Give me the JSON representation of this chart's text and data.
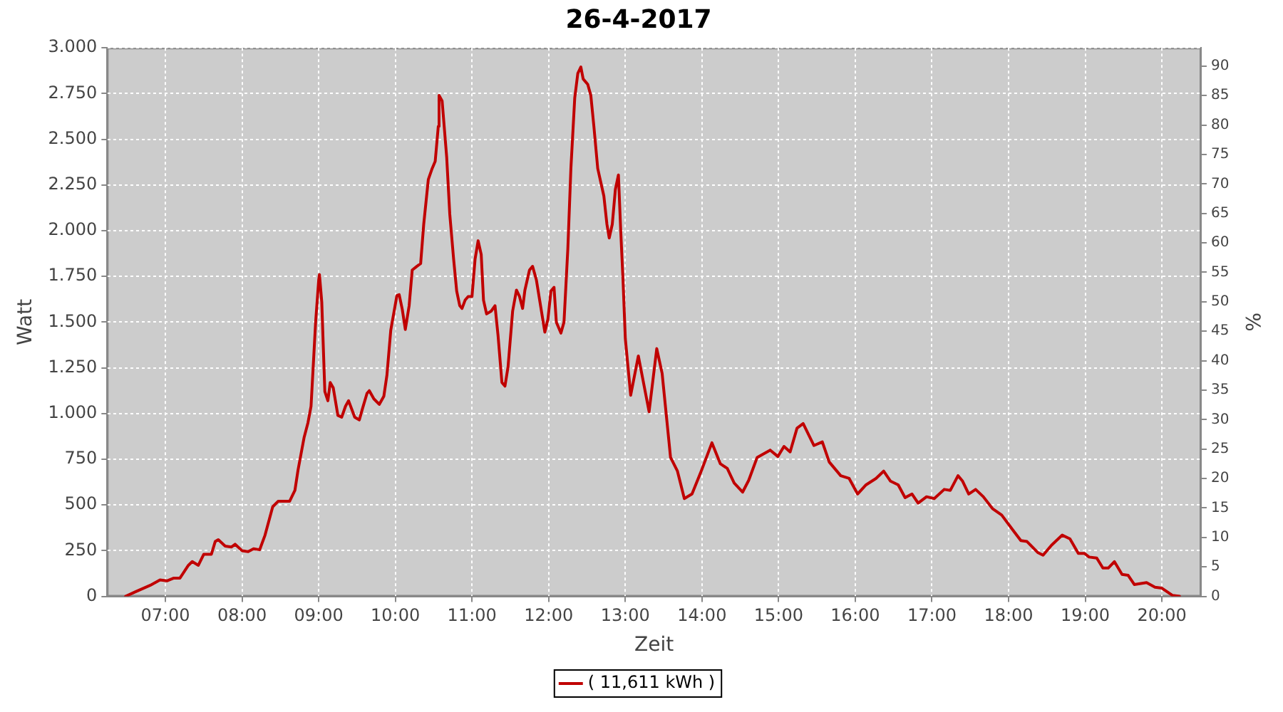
{
  "chart_data": {
    "type": "line",
    "title": "26-4-2017",
    "xlabel": "Zeit",
    "ylabel": "Watt",
    "y2label": "%",
    "xlim": [
      6.24,
      20.51
    ],
    "xticks": [
      {
        "value": 7,
        "label": "07:00"
      },
      {
        "value": 8,
        "label": "08:00"
      },
      {
        "value": 9,
        "label": "09:00"
      },
      {
        "value": 10,
        "label": "10:00"
      },
      {
        "value": 11,
        "label": "11:00"
      },
      {
        "value": 12,
        "label": "12:00"
      },
      {
        "value": 13,
        "label": "13:00"
      },
      {
        "value": 14,
        "label": "14:00"
      },
      {
        "value": 15,
        "label": "15:00"
      },
      {
        "value": 16,
        "label": "16:00"
      },
      {
        "value": 17,
        "label": "17:00"
      },
      {
        "value": 18,
        "label": "18:00"
      },
      {
        "value": 19,
        "label": "19:00"
      },
      {
        "value": 20,
        "label": "20:00"
      }
    ],
    "ylim": [
      0,
      3000
    ],
    "yticks": [
      0,
      250,
      500,
      750,
      {
        "value": 1000,
        "label": "1.000"
      },
      {
        "value": 1250,
        "label": "1.250"
      },
      {
        "value": 1500,
        "label": "1.500"
      },
      {
        "value": 1750,
        "label": "1.750"
      },
      {
        "value": 2000,
        "label": "2.000"
      },
      {
        "value": 2250,
        "label": "2.250"
      },
      {
        "value": 2500,
        "label": "2.500"
      },
      {
        "value": 2750,
        "label": "2.750"
      },
      {
        "value": 3000,
        "label": "3.000"
      }
    ],
    "y2lim": [
      0,
      93.1
    ],
    "y2ticks": [
      0,
      5,
      10,
      15,
      20,
      25,
      30,
      35,
      40,
      45,
      50,
      55,
      60,
      65,
      70,
      75,
      80,
      85,
      90
    ],
    "grid": true,
    "legend": "bottom",
    "marker": "none",
    "line_style": "solid",
    "series": [
      {
        "name": "( 11,611 kWh )",
        "color": "#c00000",
        "x": [
          6.48,
          6.61,
          6.8,
          6.93,
          7.02,
          7.11,
          7.19,
          7.3,
          7.35,
          7.43,
          7.5,
          7.6,
          7.65,
          7.69,
          7.78,
          7.86,
          7.91,
          8.0,
          8.08,
          8.15,
          8.23,
          8.3,
          8.4,
          8.47,
          8.62,
          8.69,
          8.73,
          8.81,
          8.86,
          8.9,
          8.96,
          9.0,
          9.01,
          9.04,
          9.08,
          9.12,
          9.15,
          9.19,
          9.25,
          9.3,
          9.35,
          9.39,
          9.47,
          9.53,
          9.57,
          9.63,
          9.66,
          9.72,
          9.79,
          9.85,
          9.89,
          9.94,
          10.02,
          10.05,
          10.09,
          10.13,
          10.18,
          10.22,
          10.28,
          10.33,
          10.37,
          10.43,
          10.48,
          10.52,
          10.56,
          10.57,
          10.61,
          10.67,
          10.71,
          10.76,
          10.8,
          10.84,
          10.87,
          10.91,
          10.95,
          11.0,
          11.04,
          11.08,
          11.12,
          11.15,
          11.19,
          11.25,
          11.3,
          11.34,
          11.39,
          11.43,
          11.47,
          11.53,
          11.58,
          11.62,
          11.66,
          11.69,
          11.75,
          11.79,
          11.84,
          11.9,
          11.95,
          11.99,
          12.03,
          12.07,
          12.1,
          12.16,
          12.2,
          12.25,
          12.29,
          12.34,
          12.38,
          12.42,
          12.45,
          12.51,
          12.55,
          12.59,
          12.64,
          12.68,
          12.72,
          12.76,
          12.79,
          12.83,
          12.87,
          12.91,
          12.94,
          12.97,
          13.0,
          13.07,
          13.17,
          13.31,
          13.41,
          13.48,
          13.59,
          13.68,
          13.77,
          13.87,
          13.99,
          14.13,
          14.24,
          14.33,
          14.42,
          14.53,
          14.61,
          14.72,
          14.89,
          14.99,
          15.07,
          15.15,
          15.24,
          15.32,
          15.46,
          15.57,
          15.66,
          15.81,
          15.92,
          16.03,
          16.14,
          16.27,
          16.37,
          16.46,
          16.56,
          16.65,
          16.74,
          16.82,
          16.93,
          17.03,
          17.16,
          17.24,
          17.34,
          17.4,
          17.48,
          17.57,
          17.67,
          17.79,
          17.91,
          18.07,
          18.16,
          18.24,
          18.38,
          18.45,
          18.56,
          18.7,
          18.8,
          18.91,
          18.99,
          19.05,
          19.15,
          19.23,
          19.3,
          19.38,
          19.48,
          19.56,
          19.64,
          19.8,
          19.91,
          20.0,
          20.14,
          20.23
        ],
        "values": [
          0,
          25,
          60,
          90,
          85,
          100,
          100,
          170,
          190,
          170,
          230,
          230,
          300,
          310,
          275,
          270,
          285,
          250,
          245,
          260,
          255,
          335,
          490,
          520,
          520,
          580,
          690,
          870,
          950,
          1040,
          1500,
          1730,
          1760,
          1610,
          1120,
          1070,
          1170,
          1140,
          990,
          980,
          1040,
          1070,
          980,
          965,
          1025,
          1110,
          1125,
          1080,
          1050,
          1095,
          1210,
          1455,
          1645,
          1650,
          1570,
          1460,
          1590,
          1785,
          1805,
          1820,
          2035,
          2280,
          2340,
          2380,
          2570,
          2740,
          2710,
          2400,
          2090,
          1845,
          1670,
          1590,
          1575,
          1620,
          1640,
          1640,
          1845,
          1945,
          1870,
          1620,
          1545,
          1560,
          1590,
          1425,
          1170,
          1150,
          1255,
          1560,
          1675,
          1640,
          1575,
          1675,
          1785,
          1805,
          1730,
          1575,
          1445,
          1515,
          1670,
          1690,
          1500,
          1440,
          1500,
          1900,
          2340,
          2725,
          2860,
          2895,
          2830,
          2800,
          2740,
          2570,
          2340,
          2265,
          2190,
          2035,
          1960,
          2035,
          2225,
          2305,
          2000,
          1730,
          1410,
          1100,
          1315,
          1010,
          1355,
          1220,
          760,
          685,
          535,
          560,
          685,
          840,
          725,
          700,
          620,
          570,
          635,
          760,
          800,
          765,
          820,
          790,
          920,
          945,
          825,
          845,
          735,
          660,
          645,
          560,
          610,
          645,
          685,
          630,
          610,
          540,
          560,
          510,
          545,
          535,
          585,
          580,
          660,
          630,
          560,
          585,
          545,
          480,
          445,
          355,
          305,
          300,
          240,
          225,
          280,
          335,
          315,
          235,
          235,
          215,
          210,
          155,
          155,
          190,
          120,
          115,
          65,
          75,
          50,
          45,
          5,
          0
        ]
      }
    ]
  }
}
